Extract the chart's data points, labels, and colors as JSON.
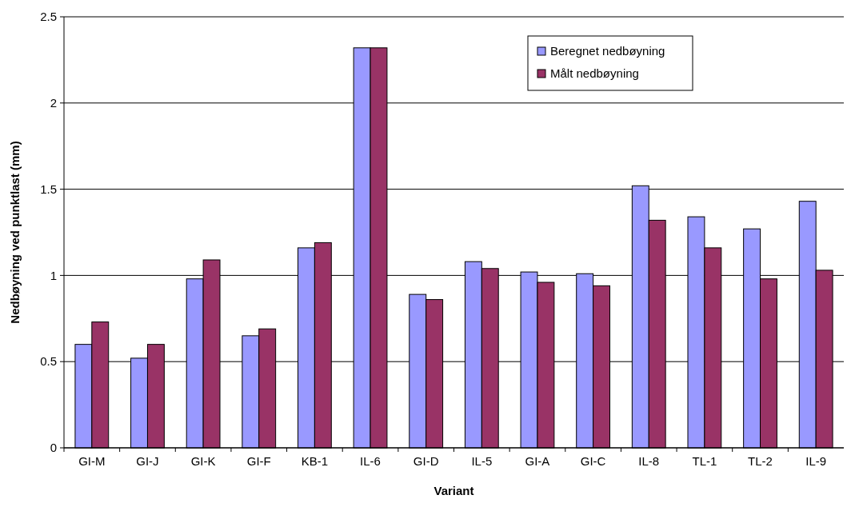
{
  "chart_data": {
    "type": "bar",
    "xlabel": "Variant",
    "ylabel": "Nedbøyning ved punktlast (mm)",
    "categories": [
      "GI-M",
      "GI-J",
      "GI-K",
      "GI-F",
      "KB-1",
      "IL-6",
      "GI-D",
      "IL-5",
      "GI-A",
      "GI-C",
      "IL-8",
      "TL-1",
      "TL-2",
      "IL-9"
    ],
    "series": [
      {
        "name": "Beregnet nedbøyning",
        "color": "#9999ff",
        "values": [
          0.6,
          0.52,
          0.98,
          0.65,
          1.16,
          2.32,
          0.89,
          1.08,
          1.02,
          1.01,
          1.52,
          1.34,
          1.27,
          1.43
        ]
      },
      {
        "name": "Målt nedbøyning",
        "color": "#993366",
        "values": [
          0.73,
          0.6,
          1.09,
          0.69,
          1.19,
          2.32,
          0.86,
          1.04,
          0.96,
          0.94,
          1.32,
          1.16,
          0.98,
          1.03
        ]
      }
    ],
    "ylim": [
      0,
      2.5
    ],
    "yticks": [
      0,
      0.5,
      1,
      1.5,
      2,
      2.5
    ],
    "grid": "y",
    "legend": "top right"
  }
}
